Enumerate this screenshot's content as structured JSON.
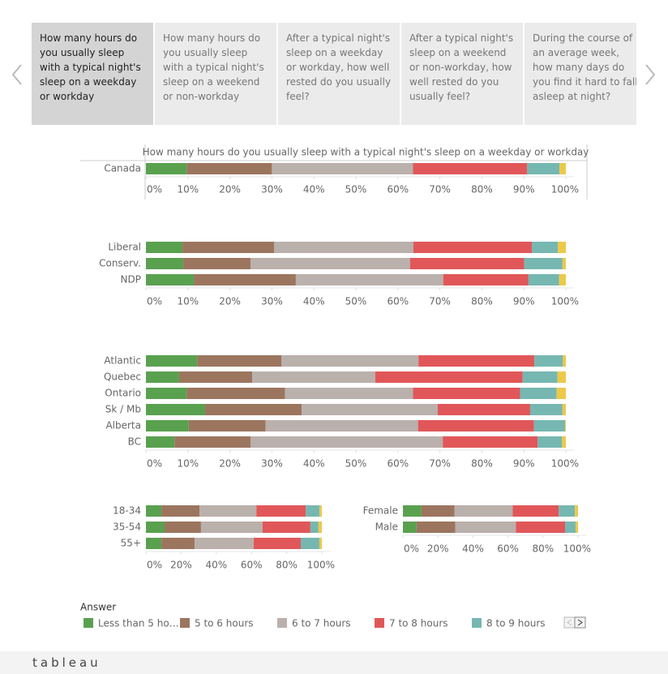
{
  "tabs": [
    {
      "text": "How many hours do you usually sleep with a typical night's sleep on a weekday or workday",
      "selected": true
    },
    {
      "text": "How many hours do you usually sleep with a typical night's sleep on a weekend or non-workday",
      "selected": false
    },
    {
      "text": "After a typical night's sleep on a weekday or workday, how well rested do you usually feel?",
      "selected": false
    },
    {
      "text": "After a typical night's sleep on a weekend or non-workday, how well rested do you usually feel?",
      "selected": false
    },
    {
      "text": "During the course of an average week, how many days do you find it hard to fall asleep at night?",
      "selected": false
    }
  ],
  "legend": {
    "title": "Answer",
    "items": [
      {
        "name": "Less than 5 ho…",
        "color": "#59a14f"
      },
      {
        "name": "5 to 6 hours",
        "color": "#9c755f"
      },
      {
        "name": "6 to 7 hours",
        "color": "#bab0ac"
      },
      {
        "name": "7 to 8 hours",
        "color": "#e15759"
      },
      {
        "name": "8 to 9 hours",
        "color": "#76b7b2"
      },
      {
        "name": null,
        "color": "#edc948"
      }
    ]
  },
  "footer": "tableau",
  "chart_data": [
    {
      "type": "stacked-bar",
      "title": "How many hours do you usually sleep with a typical night's sleep on a weekday or workday",
      "categories": [
        "Canada"
      ],
      "series": [
        {
          "values": [
            9.7
          ]
        },
        {
          "values": [
            20.3
          ]
        },
        {
          "values": [
            33.6
          ]
        },
        {
          "values": [
            27.2
          ]
        },
        {
          "values": [
            7.7
          ]
        },
        {
          "values": [
            1.5
          ]
        }
      ],
      "xlim": [
        0,
        100
      ],
      "xticks": [
        {
          "value": 0,
          "label": "0%"
        },
        {
          "value": 10,
          "label": "10%"
        },
        {
          "value": 20,
          "label": "20%"
        },
        {
          "value": 30,
          "label": "30%"
        },
        {
          "value": 40,
          "label": "40%"
        },
        {
          "value": 50,
          "label": "50%"
        },
        {
          "value": 60,
          "label": "60%"
        },
        {
          "value": 70,
          "label": "70%"
        },
        {
          "value": 80,
          "label": "80%"
        },
        {
          "value": 90,
          "label": "90%"
        },
        {
          "value": 100,
          "label": "100%"
        }
      ]
    },
    {
      "type": "stacked-bar",
      "categories": [
        "Liberal",
        "Conserv.",
        "NDP"
      ],
      "series": [
        {
          "values": [
            8.7,
            8.9,
            11.4
          ]
        },
        {
          "values": [
            21.8,
            16.0,
            24.3
          ]
        },
        {
          "values": [
            33.2,
            38.0,
            35.1
          ]
        },
        {
          "values": [
            28.2,
            27.2,
            20.3
          ]
        },
        {
          "values": [
            6.2,
            9.1,
            7.3
          ]
        },
        {
          "values": [
            1.9,
            0.8,
            1.6
          ]
        }
      ],
      "xlim": [
        0,
        100
      ],
      "xticks": [
        {
          "value": 0,
          "label": "0%"
        },
        {
          "value": 10,
          "label": "10%"
        },
        {
          "value": 20,
          "label": "20%"
        },
        {
          "value": 30,
          "label": "30%"
        },
        {
          "value": 40,
          "label": "40%"
        },
        {
          "value": 50,
          "label": "50%"
        },
        {
          "value": 60,
          "label": "60%"
        },
        {
          "value": 70,
          "label": "70%"
        },
        {
          "value": 80,
          "label": "80%"
        },
        {
          "value": 90,
          "label": "90%"
        },
        {
          "value": 100,
          "label": "100%"
        }
      ]
    },
    {
      "type": "stacked-bar",
      "categories": [
        "Atlantic",
        "Quebec",
        "Ontario",
        "Sk / Mb",
        "Alberta",
        "BC"
      ],
      "series": [
        {
          "values": [
            12.2,
            7.9,
            9.7,
            14.1,
            10.2,
            6.8
          ]
        },
        {
          "values": [
            20.1,
            17.4,
            23.4,
            23.0,
            18.3,
            18.1
          ]
        },
        {
          "values": [
            32.6,
            29.3,
            30.5,
            32.4,
            36.3,
            45.8
          ]
        },
        {
          "values": [
            27.6,
            35.1,
            25.5,
            22.0,
            27.6,
            22.6
          ]
        },
        {
          "values": [
            6.8,
            8.3,
            8.7,
            7.7,
            7.4,
            5.8
          ]
        },
        {
          "values": [
            0.7,
            2.0,
            2.2,
            0.8,
            0.2,
            0.9
          ]
        }
      ],
      "xlim": [
        0,
        100
      ],
      "xticks": [
        {
          "value": 0,
          "label": "0%"
        },
        {
          "value": 10,
          "label": "10%"
        },
        {
          "value": 20,
          "label": "20%"
        },
        {
          "value": 30,
          "label": "30%"
        },
        {
          "value": 40,
          "label": "40%"
        },
        {
          "value": 50,
          "label": "50%"
        },
        {
          "value": 60,
          "label": "60%"
        },
        {
          "value": 70,
          "label": "70%"
        },
        {
          "value": 80,
          "label": "80%"
        },
        {
          "value": 90,
          "label": "90%"
        },
        {
          "value": 100,
          "label": "100%"
        }
      ]
    },
    {
      "type": "stacked-bar",
      "categories": [
        "18-34",
        "35-54",
        "55+"
      ],
      "series": [
        {
          "values": [
            8.8,
            10.6,
            8.8
          ]
        },
        {
          "values": [
            21.7,
            20.7,
            18.9
          ]
        },
        {
          "values": [
            32.3,
            35.0,
            33.6
          ]
        },
        {
          "values": [
            28.1,
            27.2,
            26.7
          ]
        },
        {
          "values": [
            7.8,
            4.6,
            10.6
          ]
        },
        {
          "values": [
            1.3,
            1.9,
            1.4
          ]
        }
      ],
      "xlim": [
        0,
        100
      ],
      "xticks": [
        {
          "value": 0,
          "label": "0%"
        },
        {
          "value": 20,
          "label": "20%"
        },
        {
          "value": 40,
          "label": "40%"
        },
        {
          "value": 60,
          "label": "60%"
        },
        {
          "value": 80,
          "label": "80%"
        },
        {
          "value": 100,
          "label": "100%"
        }
      ]
    },
    {
      "type": "stacked-bar",
      "categories": [
        "Female",
        "Male"
      ],
      "series": [
        {
          "values": [
            10.6,
            7.8
          ]
        },
        {
          "values": [
            18.9,
            22.1
          ]
        },
        {
          "values": [
            33.2,
            34.6
          ]
        },
        {
          "values": [
            26.3,
            28.1
          ]
        },
        {
          "values": [
            9.2,
            6.0
          ]
        },
        {
          "values": [
            1.8,
            1.4
          ]
        }
      ],
      "xlim": [
        0,
        100
      ],
      "xticks": [
        {
          "value": 0,
          "label": "0%"
        },
        {
          "value": 20,
          "label": "20%"
        },
        {
          "value": 40,
          "label": "40%"
        },
        {
          "value": 60,
          "label": "60%"
        },
        {
          "value": 80,
          "label": "80%"
        },
        {
          "value": 100,
          "label": "100%"
        }
      ]
    }
  ]
}
